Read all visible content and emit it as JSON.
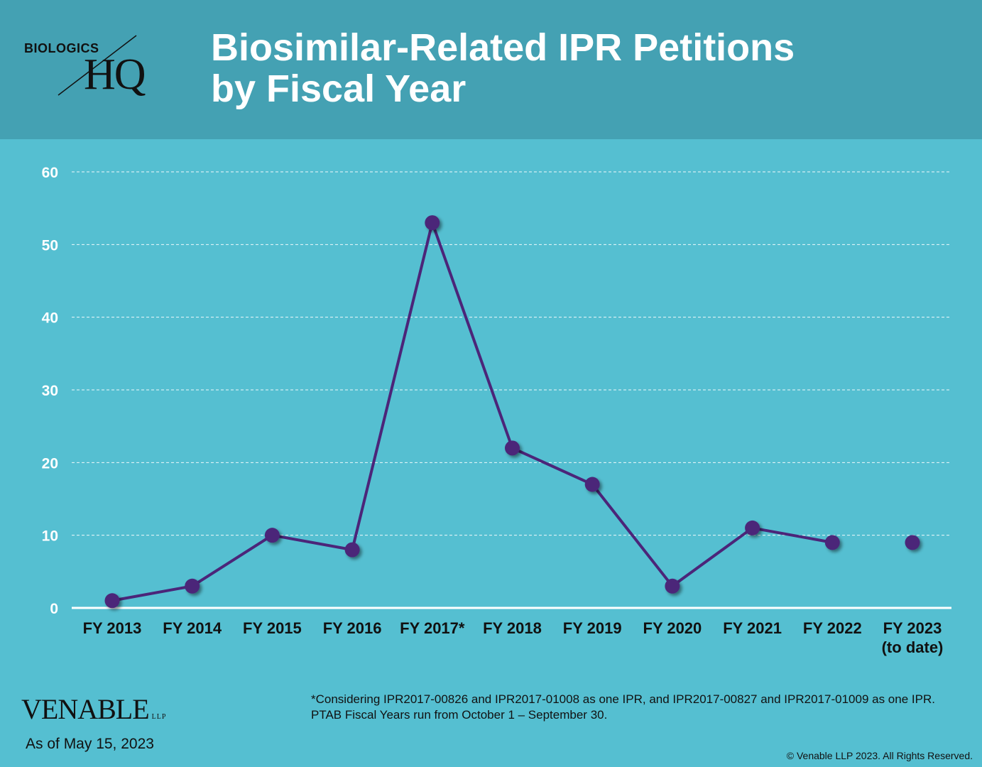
{
  "header": {
    "logo_text_top": "BIOLOGICS",
    "logo_text_main": "HQ",
    "title_line1": "Biosimilar-Related IPR Petitions",
    "title_line2": "by Fiscal Year"
  },
  "colors": {
    "header_bg": "#44A1B3",
    "chart_bg": "#55BFD1",
    "line": "#4B2579",
    "marker": "#4B2579"
  },
  "chart_data": {
    "type": "line",
    "title": "Biosimilar-Related IPR Petitions by Fiscal Year",
    "categories": [
      [
        "FY 2013"
      ],
      [
        "FY 2014"
      ],
      [
        "FY 2015"
      ],
      [
        "FY 2016"
      ],
      [
        "FY 2017*"
      ],
      [
        "FY 2018"
      ],
      [
        "FY 2019"
      ],
      [
        "FY 2020"
      ],
      [
        "FY 2021"
      ],
      [
        "FY 2022"
      ],
      [
        "FY 2023",
        "(to date)"
      ]
    ],
    "values": [
      1,
      3,
      10,
      8,
      53,
      22,
      17,
      3,
      11,
      9,
      9
    ],
    "line_connected_through_index": 9,
    "ylim": [
      0,
      60
    ],
    "yticks": [
      0,
      10,
      20,
      30,
      40,
      50,
      60
    ],
    "grid": true,
    "legend": "none"
  },
  "footer": {
    "brand": "VENABLE",
    "brand_suffix": "LLP",
    "as_of": "As of May 15, 2023",
    "footnote_line1": "*Considering IPR2017-00826 and IPR2017-01008 as one IPR, and IPR2017-00827 and IPR2017-01009 as one IPR.",
    "footnote_line2": "PTAB Fiscal Years run from October 1 – September 30.",
    "copyright": "© Venable LLP 2023. All Rights Reserved."
  }
}
